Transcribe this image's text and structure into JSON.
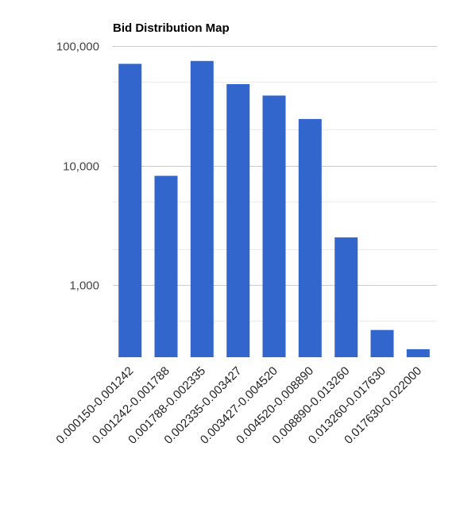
{
  "chart_data": {
    "type": "bar",
    "title": "Bid Distribution Map",
    "xlabel": "",
    "ylabel": "",
    "y_scale": "log",
    "ylim": [
      300,
      125000
    ],
    "y_ticks": [
      {
        "value": 1000,
        "label": "1,000"
      },
      {
        "value": 10000,
        "label": "10,000"
      },
      {
        "value": 100000,
        "label": "100,000"
      }
    ],
    "grid": true,
    "legend": "none",
    "bar_color": "#3366cc",
    "categories": [
      "0.000150-0.001242",
      "0.001242-0.001788",
      "0.001788-0.002335",
      "0.002335-0.003427",
      "0.003427-0.004520",
      "0.004520-0.008890",
      "0.008890-0.013260",
      "0.013260-0.017630",
      "0.017630-0.022000"
    ],
    "values": [
      71000,
      8200,
      75000,
      48000,
      38500,
      24500,
      2500,
      420,
      290
    ]
  }
}
